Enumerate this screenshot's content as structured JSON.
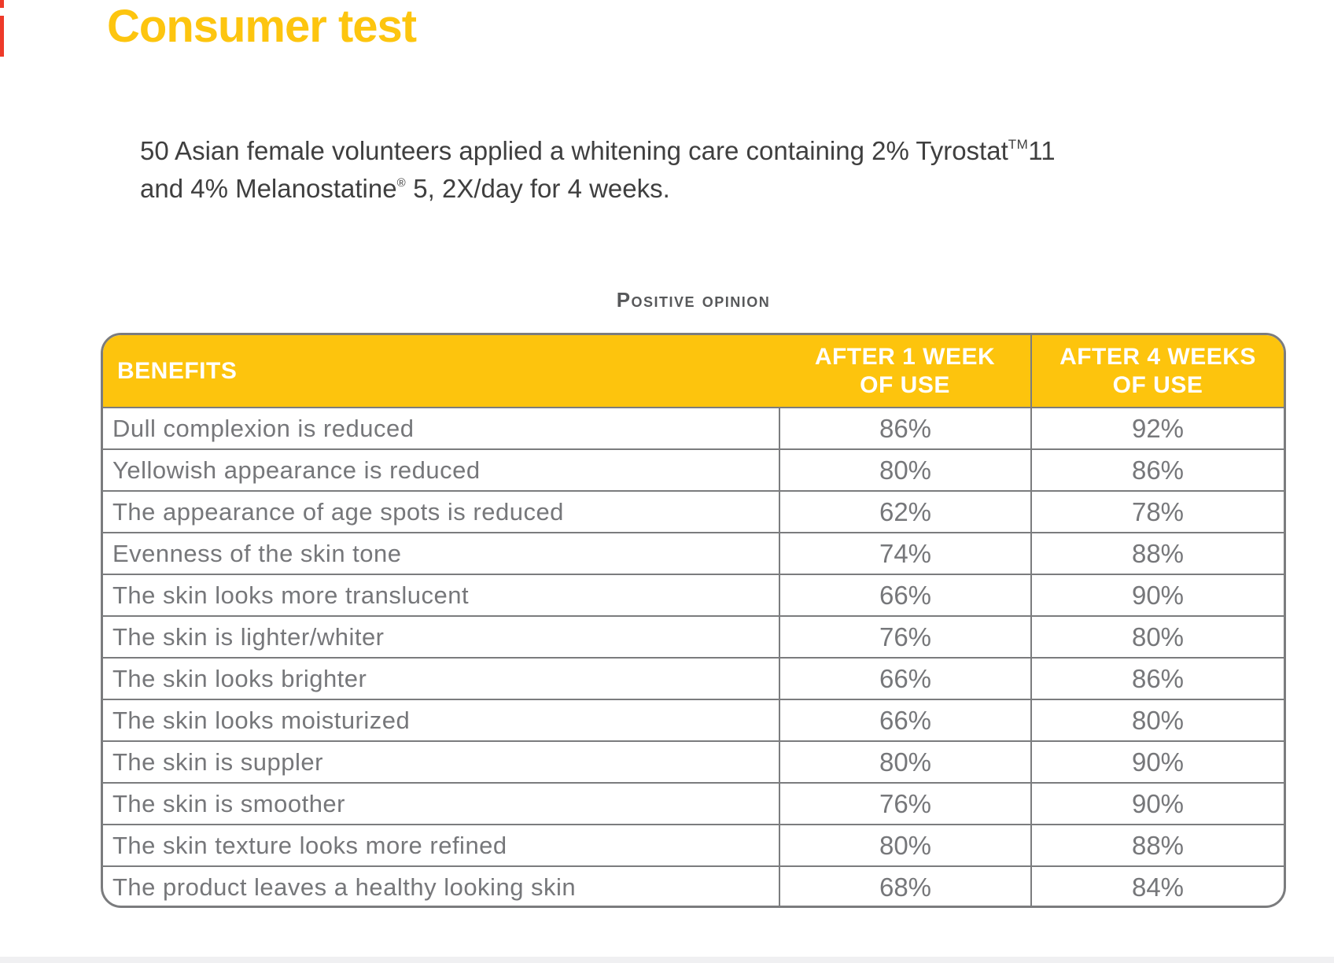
{
  "title": "Consumer test",
  "intro": {
    "line1_pre": "50 Asian female volunteers applied a whitening care containing 2% Tyrostat",
    "line1_sup": "TM",
    "line1_post": "11",
    "line2_pre": "and 4% Melanostatine",
    "line2_sup": "®",
    "line2_post": " 5, 2X/day for 4 weeks."
  },
  "table_caption": "Positive opinion",
  "table": {
    "header_benefits": "BENEFITS",
    "header_week1_line1": "AFTER 1 WEEK",
    "header_week1_line2": "OF USE",
    "header_week4_line1": "AFTER 4 WEEKS",
    "header_week4_line2": "OF USE",
    "rows": [
      {
        "benefit": "Dull complexion is reduced",
        "week1": "86%",
        "week4": "92%"
      },
      {
        "benefit": "Yellowish appearance is reduced",
        "week1": "80%",
        "week4": "86%"
      },
      {
        "benefit": "The appearance of age spots is reduced",
        "week1": "62%",
        "week4": "78%"
      },
      {
        "benefit": "Evenness of the skin tone",
        "week1": "74%",
        "week4": "88%"
      },
      {
        "benefit": "The skin looks more translucent",
        "week1": "66%",
        "week4": "90%"
      },
      {
        "benefit": "The skin is lighter/whiter",
        "week1": "76%",
        "week4": "80%"
      },
      {
        "benefit": "The skin looks brighter",
        "week1": "66%",
        "week4": "86%"
      },
      {
        "benefit": "The skin looks moisturized",
        "week1": "66%",
        "week4": "80%"
      },
      {
        "benefit": "The skin is suppler",
        "week1": "80%",
        "week4": "90%"
      },
      {
        "benefit": "The skin is smoother",
        "week1": "76%",
        "week4": "90%"
      },
      {
        "benefit": "The skin texture looks more refined",
        "week1": "80%",
        "week4": "88%"
      },
      {
        "benefit": "The product leaves a healthy looking skin",
        "week1": "68%",
        "week4": "84%"
      }
    ]
  },
  "colors": {
    "title_yellow": "#fdc50f",
    "header_yellow": "#fdc40d",
    "accent_red": "#ee3a29",
    "border_gray": "#7b7c7e",
    "table_text_gray": "#76777a",
    "body_text": "#3f3f3f",
    "caption_gray": "#57585a",
    "bottom_edge_gray": "#f0f0f2"
  }
}
